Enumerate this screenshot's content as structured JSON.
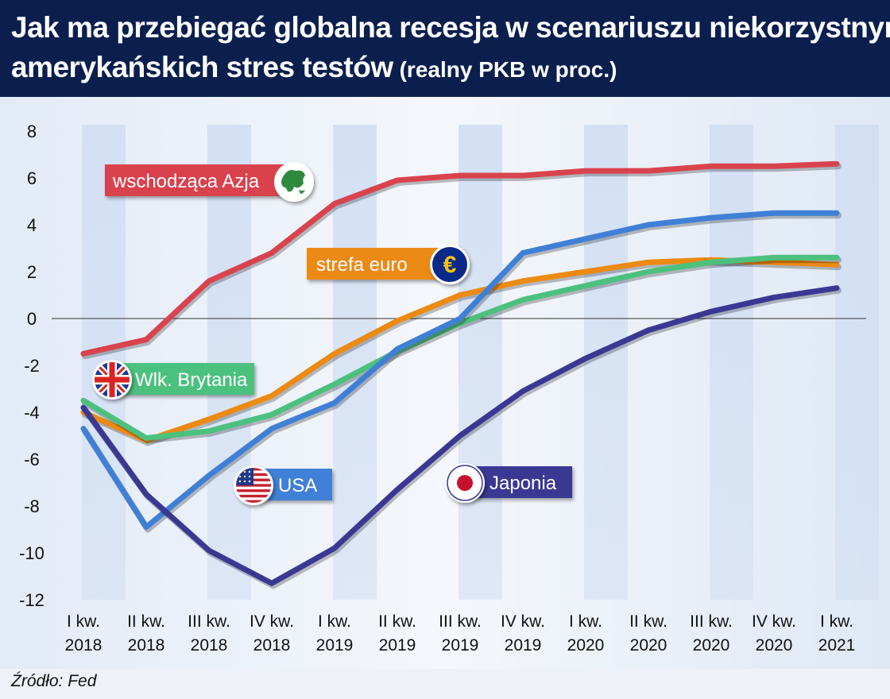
{
  "header": {
    "title_line1": "Jak ma przebiegać globalna recesja w scenariuszu niekorzystnym",
    "title_line2": "amerykańskich stres testów",
    "subtitle": "(realny PKB w proc.)"
  },
  "source": "Źródło: Fed",
  "colors": {
    "header_bg": "#0b1f4f",
    "azja": "#d9434d",
    "usa": "#3f80d6",
    "euro": "#ec8a12",
    "uk": "#4cc17e",
    "japonia": "#3b3894",
    "band": "#d2dff3"
  },
  "chart_data": {
    "type": "line",
    "x": [
      [
        "I kw.",
        "2018"
      ],
      [
        "II kw.",
        "2018"
      ],
      [
        "III kw.",
        "2018"
      ],
      [
        "IV kw.",
        "2018"
      ],
      [
        "I kw.",
        "2019"
      ],
      [
        "II kw.",
        "2019"
      ],
      [
        "III kw.",
        "2019"
      ],
      [
        "IV kw.",
        "2019"
      ],
      [
        "I kw.",
        "2020"
      ],
      [
        "II kw.",
        "2020"
      ],
      [
        "III kw.",
        "2020"
      ],
      [
        "IV kw.",
        "2020"
      ],
      [
        "I kw.",
        "2021"
      ]
    ],
    "ylim": [
      -12,
      8
    ],
    "yticks": [
      8,
      6,
      4,
      2,
      0,
      -2,
      -4,
      -6,
      -8,
      -10,
      -12
    ],
    "series": [
      {
        "name": "wschodząca Azja",
        "color": "#d9434d",
        "icon": "asia-globe-icon",
        "values": [
          -1.5,
          -0.9,
          1.6,
          2.8,
          4.9,
          5.9,
          6.1,
          6.1,
          6.3,
          6.3,
          6.5,
          6.5,
          6.6
        ]
      },
      {
        "name": "strefa euro",
        "color": "#ec8a12",
        "icon": "euro-coin-icon",
        "values": [
          -4.0,
          -5.2,
          -4.3,
          -3.3,
          -1.5,
          -0.1,
          1.0,
          1.6,
          2.0,
          2.4,
          2.5,
          2.4,
          2.3
        ]
      },
      {
        "name": "Wlk. Brytania",
        "color": "#4cc17e",
        "icon": "uk-flag-icon",
        "values": [
          -3.5,
          -5.1,
          -4.8,
          -4.1,
          -2.8,
          -1.4,
          -0.2,
          0.8,
          1.4,
          2.0,
          2.4,
          2.6,
          2.6
        ]
      },
      {
        "name": "USA",
        "color": "#3f80d6",
        "icon": "usa-flag-icon",
        "values": [
          -4.7,
          -8.9,
          -6.7,
          -4.7,
          -3.6,
          -1.3,
          0.0,
          2.8,
          3.4,
          4.0,
          4.3,
          4.5,
          4.5
        ]
      },
      {
        "name": "Japonia",
        "color": "#3b3894",
        "icon": "japan-flag-icon",
        "values": [
          -3.8,
          -7.5,
          -9.9,
          -11.3,
          -9.8,
          -7.3,
          -5.0,
          -3.1,
          -1.7,
          -0.5,
          0.3,
          0.9,
          1.3
        ]
      }
    ]
  }
}
